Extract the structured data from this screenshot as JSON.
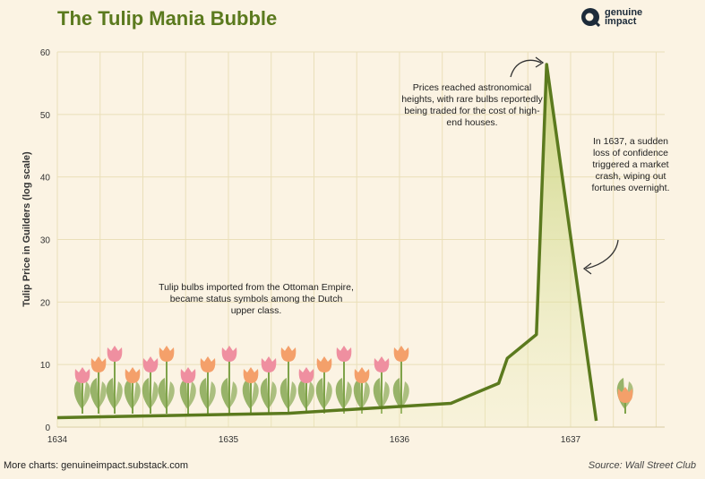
{
  "header": {
    "title": "The Tulip Mania Bubble",
    "brand_name": "genuine impact"
  },
  "footer": {
    "left": "More charts: genuineimpact.substack.com",
    "right": "Source: Wall Street Club"
  },
  "annotations": {
    "ottoman": "Tulip bulbs imported from the Ottoman Empire, became status symbols among the Dutch upper class.",
    "peak": "Prices reached astronomical heights, with rare bulbs reportedly being traded for the cost of high-end houses.",
    "crash": "In 1637, a sudden loss of confidence triggered a market crash, wiping out fortunes overnight."
  },
  "colors": {
    "line": "#5b7a1e",
    "fill_top": "#c9d67a",
    "grid": "#eadfb9",
    "tulip_pink": "#ef8fa0",
    "tulip_orange": "#f4a06a",
    "leaf": "#7fa34a"
  },
  "chart_data": {
    "type": "area",
    "title": "The Tulip Mania Bubble",
    "xlabel": "",
    "ylabel": "Tulip Price in Guilders (log scale)",
    "xlim": [
      1634,
      1637.55
    ],
    "ylim": [
      0,
      60
    ],
    "xticks": [
      1634,
      1635,
      1636,
      1637
    ],
    "yticks": [
      0,
      10,
      20,
      30,
      40,
      50,
      60
    ],
    "grid": true,
    "x": [
      1634,
      1635.35,
      1636.3,
      1636.58,
      1636.63,
      1636.8,
      1636.86,
      1637.15
    ],
    "y": [
      1.5,
      2.2,
      3.8,
      7,
      11,
      14.8,
      58,
      1
    ]
  }
}
